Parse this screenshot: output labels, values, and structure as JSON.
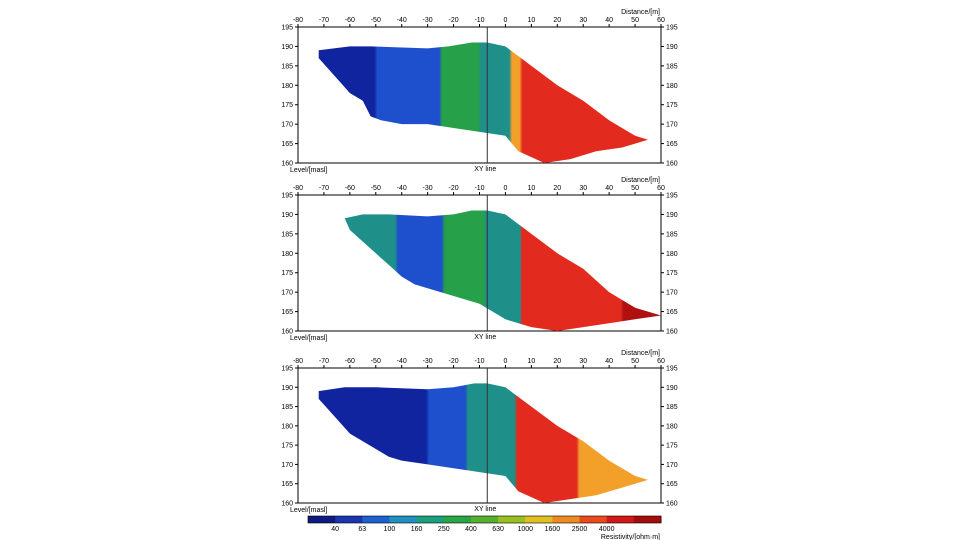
{
  "chart_data": [
    {
      "type": "heatmap",
      "panel": 1,
      "x_ticks": [
        -80,
        -70,
        -60,
        -50,
        -40,
        -30,
        -20,
        -10,
        0,
        10,
        20,
        30,
        40,
        50,
        60
      ],
      "y_ticks": [
        195,
        190,
        185,
        180,
        175,
        170,
        165,
        160
      ],
      "xlim": [
        -80,
        60
      ],
      "ylim": [
        160,
        195
      ],
      "xlabel": "Distance/[m]",
      "ylabel": "Level/[masl]",
      "marker_label": "XY line",
      "marker_x": -7,
      "surface": [
        [
          -72,
          189
        ],
        [
          -60,
          190
        ],
        [
          -52,
          190
        ],
        [
          -30,
          189.5
        ],
        [
          -22,
          190
        ],
        [
          -13,
          191
        ],
        [
          -7,
          191
        ],
        [
          0,
          190
        ],
        [
          10,
          185
        ],
        [
          20,
          180
        ],
        [
          30,
          176
        ],
        [
          40,
          171
        ],
        [
          50,
          167
        ],
        [
          55,
          166
        ]
      ],
      "bottom": [
        [
          55,
          166
        ],
        [
          45,
          164
        ],
        [
          35,
          163
        ],
        [
          25,
          161
        ],
        [
          15,
          160
        ],
        [
          5,
          163
        ],
        [
          0,
          167
        ],
        [
          -10,
          168
        ],
        [
          -20,
          169
        ],
        [
          -30,
          170
        ],
        [
          -40,
          170
        ],
        [
          -48,
          171
        ],
        [
          -52,
          172
        ],
        [
          -55,
          176
        ],
        [
          -60,
          178
        ],
        [
          -64,
          181
        ],
        [
          -68,
          184
        ],
        [
          -72,
          187
        ]
      ],
      "zones": [
        {
          "band": "dark-blue",
          "x_from": -80,
          "x_to": -50
        },
        {
          "band": "blue",
          "x_from": -50,
          "x_to": -25
        },
        {
          "band": "green",
          "x_from": -25,
          "x_to": -10
        },
        {
          "band": "teal",
          "x_from": -10,
          "x_to": 2
        },
        {
          "band": "orange",
          "x_from": 2,
          "x_to": 6
        },
        {
          "band": "red",
          "x_from": 6,
          "x_to": 60
        }
      ]
    },
    {
      "type": "heatmap",
      "panel": 2,
      "x_ticks": [
        -80,
        -70,
        -60,
        -50,
        -40,
        -30,
        -20,
        -10,
        0,
        10,
        20,
        30,
        40,
        50,
        60
      ],
      "y_ticks": [
        195,
        190,
        185,
        180,
        175,
        170,
        165,
        160
      ],
      "xlim": [
        -80,
        60
      ],
      "ylim": [
        160,
        195
      ],
      "xlabel": "Distance/[m]",
      "ylabel": "Level/[masl]",
      "marker_label": "XY line",
      "marker_x": -7,
      "surface": [
        [
          -62,
          189
        ],
        [
          -55,
          190
        ],
        [
          -45,
          190
        ],
        [
          -30,
          189.5
        ],
        [
          -20,
          190
        ],
        [
          -13,
          191
        ],
        [
          -7,
          191
        ],
        [
          0,
          190
        ],
        [
          10,
          185
        ],
        [
          20,
          180
        ],
        [
          30,
          176
        ],
        [
          40,
          170
        ],
        [
          50,
          166
        ],
        [
          60,
          164
        ]
      ],
      "bottom": [
        [
          60,
          164
        ],
        [
          50,
          163
        ],
        [
          40,
          162
        ],
        [
          30,
          161
        ],
        [
          20,
          160
        ],
        [
          10,
          161
        ],
        [
          0,
          163
        ],
        [
          -10,
          167
        ],
        [
          -20,
          169
        ],
        [
          -25,
          170
        ],
        [
          -30,
          171
        ],
        [
          -35,
          172
        ],
        [
          -40,
          174
        ],
        [
          -45,
          177
        ],
        [
          -50,
          180
        ],
        [
          -55,
          183
        ],
        [
          -60,
          186
        ]
      ],
      "zones": [
        {
          "band": "teal",
          "x_from": -80,
          "x_to": -42
        },
        {
          "band": "blue",
          "x_from": -42,
          "x_to": -24
        },
        {
          "band": "green",
          "x_from": -24,
          "x_to": -8
        },
        {
          "band": "teal",
          "x_from": -8,
          "x_to": 6
        },
        {
          "band": "red",
          "x_from": 6,
          "x_to": 45
        },
        {
          "band": "dark-red",
          "x_from": 45,
          "x_to": 60
        }
      ]
    },
    {
      "type": "heatmap",
      "panel": 3,
      "x_ticks": [
        -80,
        -70,
        -60,
        -50,
        -40,
        -30,
        -20,
        -10,
        0,
        10,
        20,
        30,
        40,
        50,
        60
      ],
      "y_ticks": [
        195,
        190,
        185,
        180,
        175,
        170,
        165,
        160
      ],
      "xlim": [
        -80,
        60
      ],
      "ylim": [
        160,
        195
      ],
      "xlabel": "Distance/[m]",
      "ylabel": "Level/[masl]",
      "marker_label": "XY line",
      "marker_x": -7,
      "surface": [
        [
          -72,
          189
        ],
        [
          -62,
          190
        ],
        [
          -50,
          190
        ],
        [
          -30,
          189.5
        ],
        [
          -20,
          190
        ],
        [
          -12,
          191
        ],
        [
          -7,
          191
        ],
        [
          0,
          190
        ],
        [
          10,
          185
        ],
        [
          20,
          180
        ],
        [
          30,
          176
        ],
        [
          40,
          171
        ],
        [
          50,
          167
        ],
        [
          55,
          166
        ]
      ],
      "bottom": [
        [
          55,
          166
        ],
        [
          45,
          164
        ],
        [
          35,
          162
        ],
        [
          25,
          161
        ],
        [
          15,
          160
        ],
        [
          5,
          163
        ],
        [
          0,
          167
        ],
        [
          -10,
          168
        ],
        [
          -20,
          169
        ],
        [
          -30,
          170
        ],
        [
          -40,
          171
        ],
        [
          -45,
          172
        ],
        [
          -50,
          174
        ],
        [
          -55,
          176
        ],
        [
          -60,
          178
        ],
        [
          -64,
          181
        ],
        [
          -68,
          184
        ],
        [
          -72,
          187
        ]
      ],
      "zones": [
        {
          "band": "dark-blue",
          "x_from": -80,
          "x_to": -30
        },
        {
          "band": "blue",
          "x_from": -30,
          "x_to": -15
        },
        {
          "band": "teal",
          "x_from": -15,
          "x_to": 4
        },
        {
          "band": "red",
          "x_from": 4,
          "x_to": 28
        },
        {
          "band": "orange",
          "x_from": 28,
          "x_to": 60
        }
      ]
    }
  ],
  "colorbar": {
    "label": "Resistivity/[ohm·m]",
    "ticks": [
      "40",
      "63",
      "100",
      "160",
      "250",
      "400",
      "630",
      "1000",
      "1600",
      "2500",
      "4000"
    ],
    "colors": [
      "#0d1a80",
      "#1a35b0",
      "#1d60d0",
      "#2090c0",
      "#1aa080",
      "#2aa545",
      "#55b030",
      "#9ac020",
      "#e0c020",
      "#f08a20",
      "#ea4a1c",
      "#d21818",
      "#a50c0c"
    ]
  },
  "band_colors": {
    "dark-blue": "#1024a0",
    "blue": "#1e4fcc",
    "green": "#27a04a",
    "teal": "#1f8f8a",
    "orange": "#f2a02a",
    "red": "#e32a1e",
    "dark-red": "#b01010"
  }
}
